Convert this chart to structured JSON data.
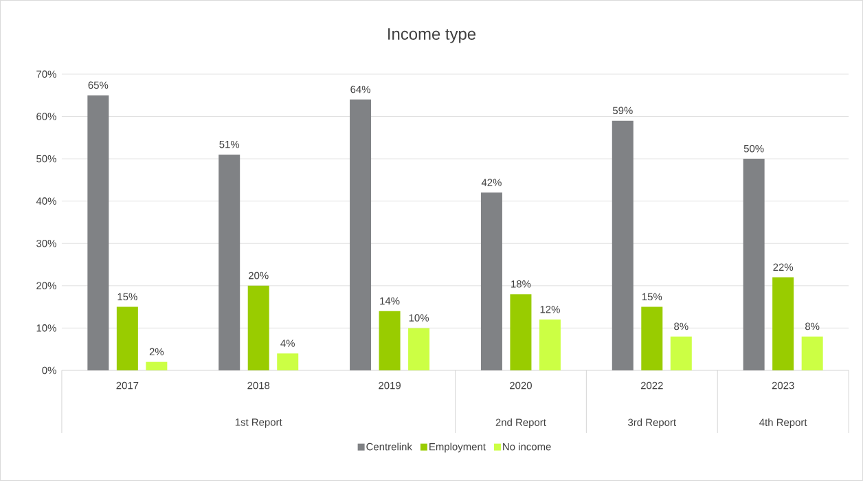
{
  "chart_data": {
    "type": "bar",
    "title": "Income type",
    "categories": [
      "2017",
      "2018",
      "2019",
      "2020",
      "2022",
      "2023"
    ],
    "annotations": [
      "1st Report",
      "2nd Report",
      "3rd Report",
      "4th Report"
    ],
    "series": [
      {
        "name": "Centrelink",
        "color": "#808285",
        "values": [
          65,
          51,
          64,
          42,
          59,
          50
        ],
        "value_labels": [
          "65%",
          "51%",
          "64%",
          "42%",
          "59%",
          "50%"
        ]
      },
      {
        "name": "Employment",
        "color": "#99cc00",
        "values": [
          15,
          20,
          14,
          18,
          15,
          22
        ],
        "value_labels": [
          "15%",
          "20%",
          "14%",
          "18%",
          "15%",
          "22%"
        ]
      },
      {
        "name": "No income",
        "color": "#ccff44",
        "values": [
          2,
          4,
          10,
          12,
          8,
          8
        ],
        "value_labels": [
          "2%",
          "4%",
          "10%",
          "12%",
          "8%",
          "8%"
        ]
      }
    ],
    "ylim": [
      0,
      70
    ],
    "yticks": [
      {
        "value": 0,
        "label": "0%"
      },
      {
        "value": 10,
        "label": "10%"
      },
      {
        "value": 20,
        "label": "20%"
      },
      {
        "value": 30,
        "label": "30%"
      },
      {
        "value": 40,
        "label": "40%"
      },
      {
        "value": 50,
        "label": "50%"
      },
      {
        "value": 60,
        "label": "60%"
      },
      {
        "value": 70,
        "label": "70%"
      }
    ],
    "grid": "y",
    "legend": "bottom"
  }
}
